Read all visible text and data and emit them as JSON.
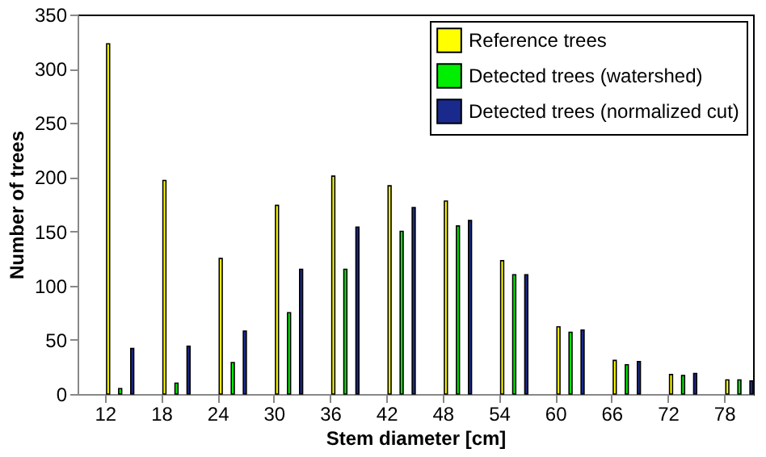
{
  "chart_data": {
    "type": "bar",
    "xlabel": "Stem diameter [cm]",
    "ylabel": "Number of trees",
    "categories": [
      "12",
      "18",
      "24",
      "30",
      "36",
      "42",
      "48",
      "54",
      "60",
      "66",
      "72",
      "78"
    ],
    "series": [
      {
        "name": "Reference trees",
        "color": "#ffff00",
        "values": [
          323,
          197,
          125,
          174,
          201,
          192,
          178,
          123,
          62,
          31,
          18,
          13
        ]
      },
      {
        "name": "Detected trees (watershed)",
        "color": "#00ee00",
        "values": [
          5,
          10,
          29,
          75,
          115,
          150,
          155,
          110,
          57,
          27,
          17,
          13
        ]
      },
      {
        "name": "Detected trees (normalized cut)",
        "color": "#1a2a8c",
        "values": [
          42,
          44,
          58,
          115,
          154,
          172,
          160,
          110,
          59,
          30,
          19,
          12
        ]
      }
    ],
    "ylim": [
      0,
      350
    ],
    "yticks": [
      0,
      50,
      100,
      150,
      200,
      250,
      300,
      350
    ],
    "grid": false,
    "legend": "top right"
  }
}
